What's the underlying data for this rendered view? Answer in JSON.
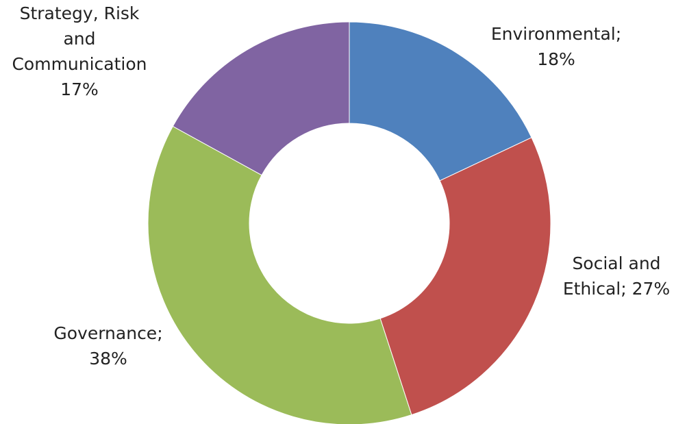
{
  "chart_data": {
    "type": "pie",
    "variant": "donut",
    "title": "",
    "legend": "none",
    "slices": [
      {
        "name": "Environmental",
        "value": 18,
        "color": "#4F81BD",
        "label_lines": [
          "Environmental;",
          "18%"
        ]
      },
      {
        "name": "Social and Ethical",
        "value": 27,
        "color": "#C0504D",
        "label_lines": [
          "Social and",
          "Ethical; 27%"
        ]
      },
      {
        "name": "Governance",
        "value": 38,
        "color": "#9BBB59",
        "label_lines": [
          "Governance;",
          "38%"
        ]
      },
      {
        "name": "Strategy, Risk and Communication",
        "value": 17,
        "color": "#8064A2",
        "label_lines": [
          "Strategy, Risk",
          "and",
          "Communication",
          "17%"
        ]
      }
    ]
  }
}
